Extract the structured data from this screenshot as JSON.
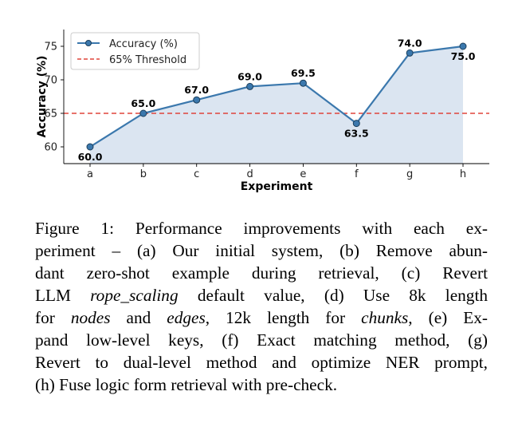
{
  "chart_data": {
    "type": "line",
    "categories": [
      "a",
      "b",
      "c",
      "d",
      "e",
      "f",
      "g",
      "h"
    ],
    "series": [
      {
        "name": "Accuracy (%)",
        "values": [
          60.0,
          65.0,
          67.0,
          69.0,
          69.5,
          63.5,
          74.0,
          75.0
        ],
        "color": "#3b78ad",
        "fill": "#dbe5f1"
      }
    ],
    "data_labels": [
      "60.0",
      "65.0",
      "67.0",
      "69.0",
      "69.5",
      "63.5",
      "74.0",
      "75.0"
    ],
    "threshold": {
      "name": "65% Threshold",
      "value": 65,
      "color": "#e0453c",
      "style": "dashed"
    },
    "xlabel": "Experiment",
    "ylabel": "Accuracy (%)",
    "yticks": [
      60,
      65,
      70,
      75
    ],
    "ylim": [
      57.5,
      77.5
    ],
    "grid": false,
    "legend": "top-left"
  },
  "caption": {
    "lines": [
      [
        {
          "t": "Figure 1:  Performance improvements with each ex-"
        }
      ],
      [
        {
          "t": "periment – (a) Our initial system, (b) Remove abun-"
        }
      ],
      [
        {
          "t": "dant zero-shot example during retrieval, (c) Revert"
        }
      ],
      [
        {
          "t": "LLM "
        },
        {
          "t": "rope_scaling",
          "i": true
        },
        {
          "t": " default value, (d) Use 8k length"
        }
      ],
      [
        {
          "t": "for "
        },
        {
          "t": "nodes",
          "i": true
        },
        {
          "t": " and "
        },
        {
          "t": "edges",
          "i": true
        },
        {
          "t": ", 12k length for "
        },
        {
          "t": "chunks",
          "i": true
        },
        {
          "t": ", (e) Ex-"
        }
      ],
      [
        {
          "t": "pand low-level keys, (f) Exact matching method, (g)"
        }
      ],
      [
        {
          "t": "Revert to dual-level method and optimize NER prompt,"
        }
      ],
      [
        {
          "t": "(h) Fuse logic form retrieval with pre-check."
        }
      ]
    ]
  }
}
